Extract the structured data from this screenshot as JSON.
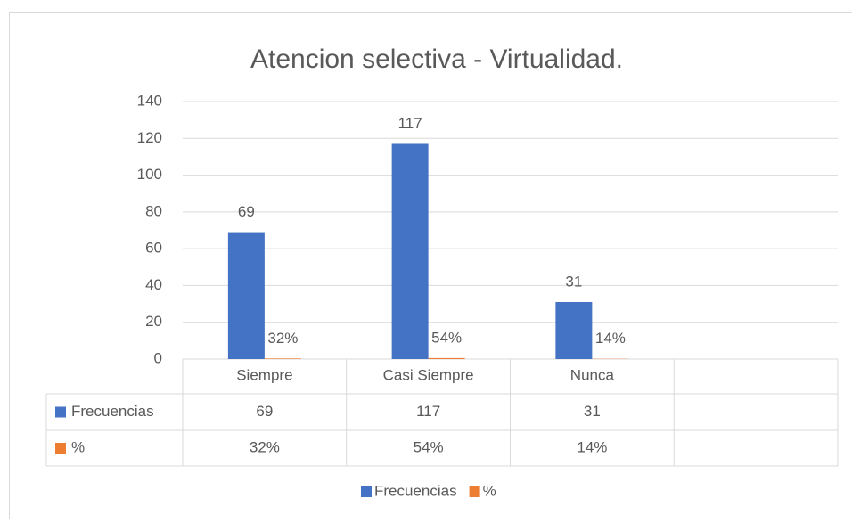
{
  "chart_data": {
    "type": "bar",
    "title": "Atencion selectiva - Virtualidad.",
    "categories": [
      "Siempre",
      "Casi Siempre",
      "Nunca",
      null
    ],
    "series": [
      {
        "name": "Frecuencias",
        "color": "#4472c4",
        "values": [
          69,
          117,
          31,
          null
        ]
      },
      {
        "name": "%",
        "color": "#ed7d31",
        "values": [
          0.32,
          0.54,
          0.14,
          null
        ],
        "value_labels": [
          "32%",
          "54%",
          "14%",
          null
        ]
      }
    ],
    "ylim": [
      0,
      140
    ],
    "yticks": [
      0,
      20,
      40,
      60,
      80,
      100,
      120,
      140
    ],
    "grid": true,
    "legend": "bottom",
    "data_table": true
  }
}
